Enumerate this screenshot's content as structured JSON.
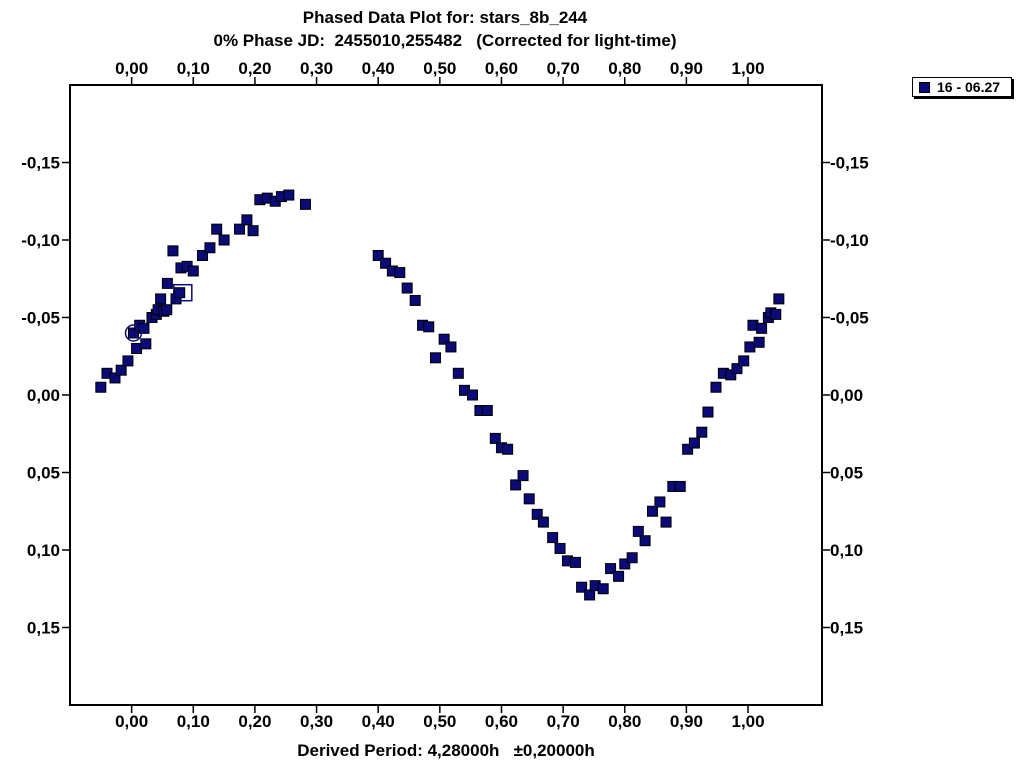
{
  "chart_data": {
    "type": "scatter",
    "title": "Phased Data Plot for: stars_8b_244",
    "subtitle": "0% Phase JD:  2455010,255482   (Corrected for light-time)",
    "xlabel": "Derived Period: 4,28000h   ±0,20000h",
    "ylabel": "",
    "xlim": [
      -0.1,
      1.12
    ],
    "ylim": [
      0.2,
      -0.2
    ],
    "y_inverted": true,
    "grid": false,
    "legend_position": "top-right",
    "x_ticks": [
      "0,00",
      "0,10",
      "0,20",
      "0,30",
      "0,40",
      "0,50",
      "0,60",
      "0,70",
      "0,80",
      "0,90",
      "1,00"
    ],
    "x_tick_values": [
      0.0,
      0.1,
      0.2,
      0.3,
      0.4,
      0.5,
      0.6,
      0.7,
      0.8,
      0.9,
      1.0
    ],
    "y_ticks": [
      "-0,15",
      "-0,10",
      "-0,05",
      "0,00",
      "0,05",
      "0,10",
      "0,15"
    ],
    "y_tick_values": [
      -0.15,
      -0.1,
      -0.05,
      0.0,
      0.05,
      0.1,
      0.15
    ],
    "series": [
      {
        "name": "16 - 06.27",
        "color": "#0a0a78",
        "marker": "square",
        "points": [
          [
            -0.05,
            -0.005
          ],
          [
            -0.04,
            -0.014
          ],
          [
            -0.027,
            -0.011
          ],
          [
            -0.017,
            -0.016
          ],
          [
            -0.006,
            -0.022
          ],
          [
            0.003,
            -0.04
          ],
          [
            0.008,
            -0.03
          ],
          [
            0.013,
            -0.045
          ],
          [
            0.02,
            -0.043
          ],
          [
            0.023,
            -0.033
          ],
          [
            0.033,
            -0.05
          ],
          [
            0.04,
            -0.052
          ],
          [
            0.043,
            -0.055
          ],
          [
            0.047,
            -0.062
          ],
          [
            0.052,
            -0.054
          ],
          [
            0.057,
            -0.055
          ],
          [
            0.058,
            -0.072
          ],
          [
            0.067,
            -0.093
          ],
          [
            0.072,
            -0.062
          ],
          [
            0.078,
            -0.066
          ],
          [
            0.08,
            -0.082
          ],
          [
            0.09,
            -0.083
          ],
          [
            0.1,
            -0.08
          ],
          [
            0.115,
            -0.09
          ],
          [
            0.127,
            -0.095
          ],
          [
            0.138,
            -0.107
          ],
          [
            0.15,
            -0.1
          ],
          [
            0.175,
            -0.107
          ],
          [
            0.187,
            -0.113
          ],
          [
            0.197,
            -0.106
          ],
          [
            0.208,
            -0.126
          ],
          [
            0.22,
            -0.127
          ],
          [
            0.233,
            -0.125
          ],
          [
            0.243,
            -0.128
          ],
          [
            0.255,
            -0.129
          ],
          [
            0.282,
            -0.123
          ],
          [
            0.4,
            -0.09
          ],
          [
            0.412,
            -0.085
          ],
          [
            0.423,
            -0.08
          ],
          [
            0.435,
            -0.079
          ],
          [
            0.447,
            -0.069
          ],
          [
            0.46,
            -0.061
          ],
          [
            0.472,
            -0.045
          ],
          [
            0.482,
            -0.044
          ],
          [
            0.493,
            -0.024
          ],
          [
            0.507,
            -0.036
          ],
          [
            0.518,
            -0.031
          ],
          [
            0.53,
            -0.014
          ],
          [
            0.54,
            -0.003
          ],
          [
            0.553,
            0.0
          ],
          [
            0.565,
            0.01
          ],
          [
            0.577,
            0.01
          ],
          [
            0.59,
            0.028
          ],
          [
            0.6,
            0.034
          ],
          [
            0.61,
            0.035
          ],
          [
            0.623,
            0.058
          ],
          [
            0.635,
            0.052
          ],
          [
            0.645,
            0.067
          ],
          [
            0.658,
            0.077
          ],
          [
            0.668,
            0.082
          ],
          [
            0.683,
            0.092
          ],
          [
            0.695,
            0.099
          ],
          [
            0.707,
            0.107
          ],
          [
            0.72,
            0.108
          ],
          [
            0.73,
            0.124
          ],
          [
            0.743,
            0.129
          ],
          [
            0.752,
            0.123
          ],
          [
            0.765,
            0.125
          ],
          [
            0.777,
            0.112
          ],
          [
            0.79,
            0.117
          ],
          [
            0.8,
            0.109
          ],
          [
            0.812,
            0.105
          ],
          [
            0.822,
            0.088
          ],
          [
            0.833,
            0.094
          ],
          [
            0.845,
            0.075
          ],
          [
            0.857,
            0.069
          ],
          [
            0.867,
            0.082
          ],
          [
            0.878,
            0.059
          ],
          [
            0.89,
            0.059
          ],
          [
            0.902,
            0.035
          ],
          [
            0.913,
            0.031
          ],
          [
            0.925,
            0.024
          ],
          [
            0.935,
            0.011
          ],
          [
            0.948,
            -0.005
          ],
          [
            0.96,
            -0.014
          ],
          [
            0.972,
            -0.013
          ],
          [
            0.982,
            -0.017
          ],
          [
            0.993,
            -0.022
          ],
          [
            1.003,
            -0.031
          ],
          [
            1.008,
            -0.045
          ],
          [
            1.018,
            -0.034
          ],
          [
            1.022,
            -0.043
          ],
          [
            1.033,
            -0.05
          ],
          [
            1.037,
            -0.053
          ],
          [
            1.045,
            -0.052
          ],
          [
            1.05,
            -0.062
          ]
        ]
      }
    ],
    "highlighted_points": [
      {
        "marker": "circle",
        "x": 0.003,
        "y": -0.04
      },
      {
        "marker": "square-outline",
        "x": 0.083,
        "y": -0.066
      }
    ]
  }
}
